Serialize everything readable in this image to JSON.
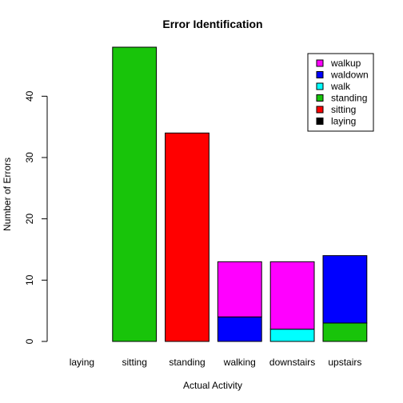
{
  "chart_data": {
    "type": "bar",
    "stacked": true,
    "title": "Error Identification",
    "xlabel": "Actual Activity",
    "ylabel": "Number of Errors",
    "categories": [
      "laying",
      "sitting",
      "standing",
      "walking",
      "downstairs",
      "upstairs"
    ],
    "ylim": [
      0,
      48
    ],
    "yticks": [
      0,
      10,
      20,
      30,
      40
    ],
    "legend_position": "top-right",
    "series": [
      {
        "name": "laying",
        "color": "#000000",
        "values": [
          0,
          0,
          0,
          0,
          0,
          0
        ]
      },
      {
        "name": "sitting",
        "color": "#FF0000",
        "values": [
          0,
          0,
          34,
          0,
          0,
          0
        ]
      },
      {
        "name": "standing",
        "color": "#18C40A",
        "values": [
          0,
          48,
          0,
          0,
          0,
          3
        ]
      },
      {
        "name": "walk",
        "color": "#00FFFF",
        "values": [
          0,
          0,
          0,
          0,
          2,
          0
        ]
      },
      {
        "name": "waldown",
        "color": "#0000FF",
        "values": [
          0,
          0,
          0,
          4,
          0,
          11
        ]
      },
      {
        "name": "walkup",
        "color": "#FF00FF",
        "values": [
          0,
          0,
          0,
          9,
          11,
          0
        ]
      }
    ]
  }
}
